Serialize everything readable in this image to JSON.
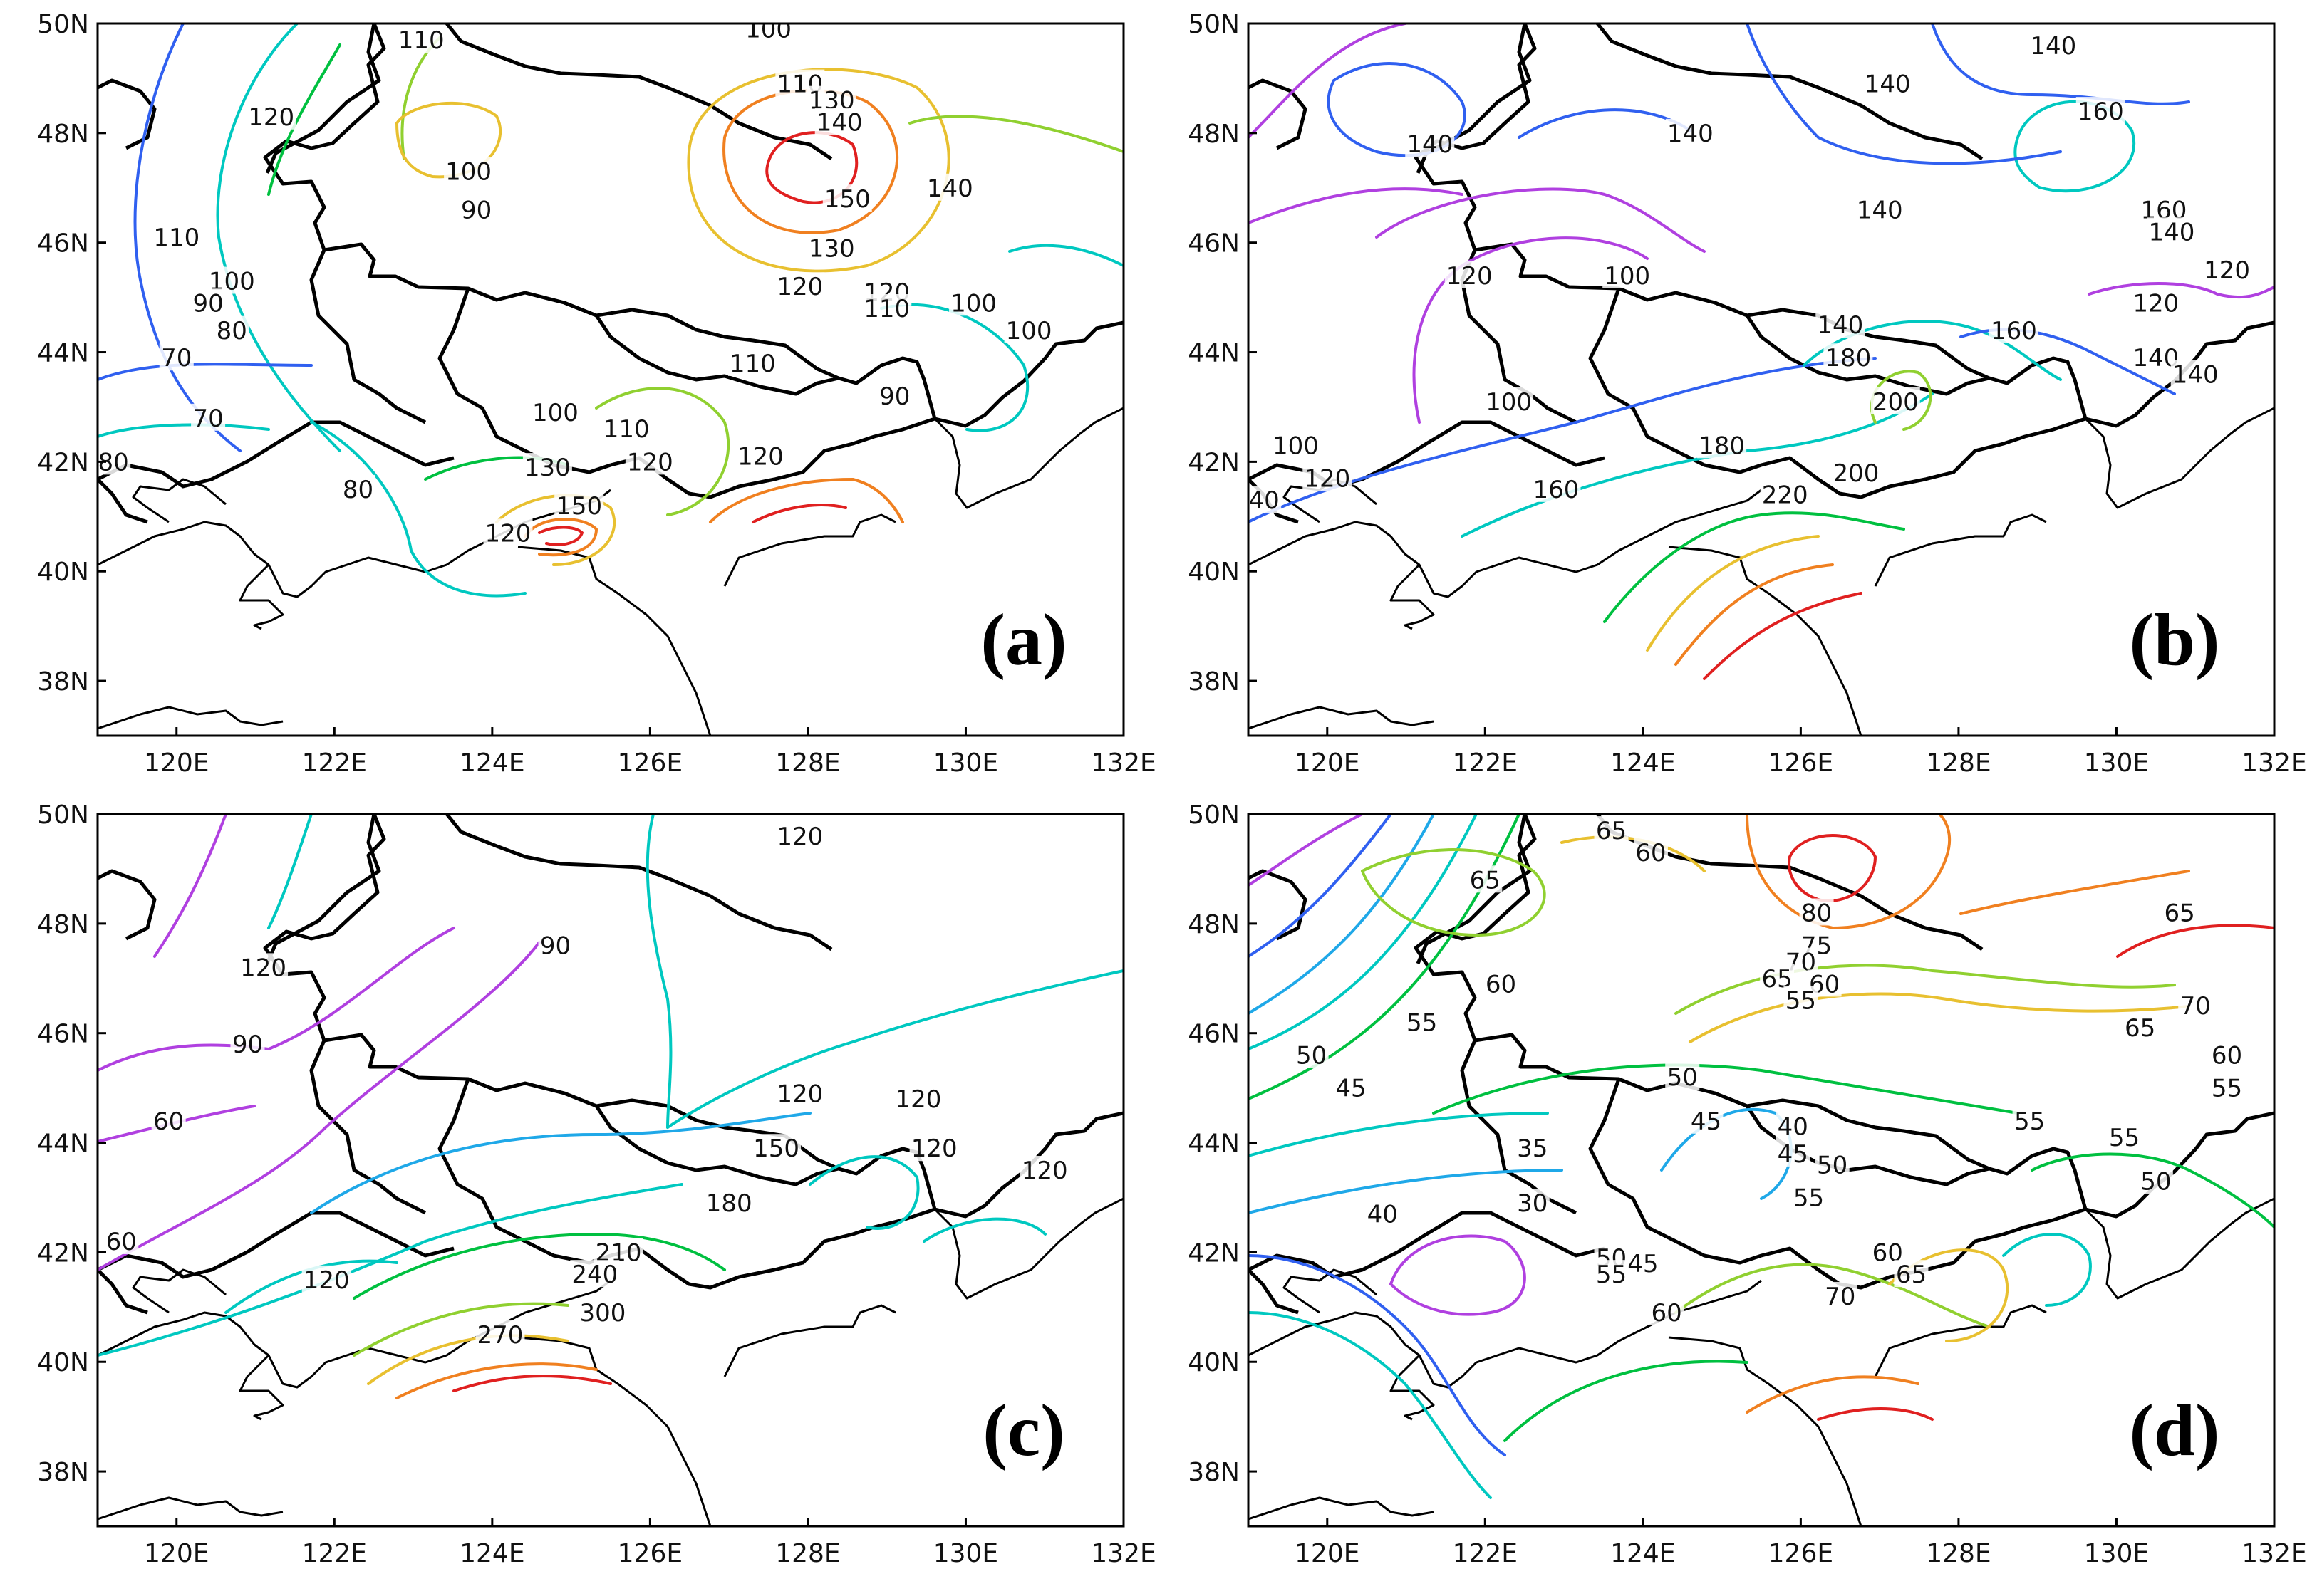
{
  "figure": {
    "lon_ticks": [
      "120E",
      "122E",
      "124E",
      "126E",
      "128E",
      "130E",
      "132E"
    ],
    "lat_ticks": [
      "50N",
      "48N",
      "46N",
      "44N",
      "42N",
      "40N",
      "38N"
    ],
    "extent": {
      "lon": [
        119,
        132
      ],
      "lat": [
        37,
        50
      ]
    }
  },
  "colors": {
    "c30": "#b040e0",
    "c35": "#b040e0",
    "c40": "#3060f0",
    "c45": "#1f9fe8",
    "c50": "#00c8c0",
    "c55": "#00c060",
    "c60": "#70d040",
    "c65": "#e0c030",
    "c70": "#f07820",
    "c75": "#f05020",
    "c80": "#e02020",
    "purple": "#b040e0",
    "blue": "#3060f0",
    "lightblue": "#1fa8e8",
    "cyan": "#00c8c0",
    "green": "#00c040",
    "lime": "#90d030",
    "yellow": "#e8c030",
    "orange": "#f08020",
    "red": "#e02020"
  },
  "panels": [
    {
      "id": "a",
      "letter": "(a)",
      "labels": [
        {
          "t": "110",
          "lon": 123.1,
          "lat": 49.7
        },
        {
          "t": "100",
          "lon": 127.5,
          "lat": 49.9
        },
        {
          "t": "120",
          "lon": 121.2,
          "lat": 48.3
        },
        {
          "t": "100",
          "lon": 123.7,
          "lat": 47.3
        },
        {
          "t": "90",
          "lon": 123.8,
          "lat": 46.6
        },
        {
          "t": "110",
          "lon": 127.9,
          "lat": 48.9
        },
        {
          "t": "130",
          "lon": 128.3,
          "lat": 48.6
        },
        {
          "t": "140",
          "lon": 128.4,
          "lat": 48.2
        },
        {
          "t": "150",
          "lon": 128.5,
          "lat": 46.8
        },
        {
          "t": "140",
          "lon": 129.8,
          "lat": 47.0
        },
        {
          "t": "130",
          "lon": 128.3,
          "lat": 45.9
        },
        {
          "t": "120",
          "lon": 127.9,
          "lat": 45.2
        },
        {
          "t": "120",
          "lon": 129.0,
          "lat": 45.1
        },
        {
          "t": "110",
          "lon": 129.0,
          "lat": 44.8
        },
        {
          "t": "100",
          "lon": 130.1,
          "lat": 44.9
        },
        {
          "t": "100",
          "lon": 130.8,
          "lat": 44.4
        },
        {
          "t": "110",
          "lon": 120.0,
          "lat": 46.1
        },
        {
          "t": "100",
          "lon": 120.7,
          "lat": 45.3
        },
        {
          "t": "90",
          "lon": 120.4,
          "lat": 44.9
        },
        {
          "t": "80",
          "lon": 120.7,
          "lat": 44.4
        },
        {
          "t": "70",
          "lon": 120.0,
          "lat": 43.9
        },
        {
          "t": "70",
          "lon": 120.4,
          "lat": 42.8
        },
        {
          "t": "80",
          "lon": 119.2,
          "lat": 42.0
        },
        {
          "t": "80",
          "lon": 122.3,
          "lat": 41.5
        },
        {
          "t": "110",
          "lon": 127.3,
          "lat": 43.8
        },
        {
          "t": "90",
          "lon": 129.1,
          "lat": 43.2
        },
        {
          "t": "100",
          "lon": 124.8,
          "lat": 42.9
        },
        {
          "t": "110",
          "lon": 125.7,
          "lat": 42.6
        },
        {
          "t": "130",
          "lon": 124.7,
          "lat": 41.9
        },
        {
          "t": "120",
          "lon": 126.0,
          "lat": 42.0
        },
        {
          "t": "120",
          "lon": 127.4,
          "lat": 42.1
        },
        {
          "t": "150",
          "lon": 125.1,
          "lat": 41.2
        },
        {
          "t": "120",
          "lon": 124.2,
          "lat": 40.7
        }
      ]
    },
    {
      "id": "b",
      "letter": "(b)",
      "labels": [
        {
          "t": "140",
          "lon": 129.2,
          "lat": 49.6
        },
        {
          "t": "140",
          "lon": 127.1,
          "lat": 48.9
        },
        {
          "t": "160",
          "lon": 129.8,
          "lat": 48.4
        },
        {
          "t": "140",
          "lon": 121.3,
          "lat": 47.8
        },
        {
          "t": "140",
          "lon": 124.6,
          "lat": 48.0
        },
        {
          "t": "140",
          "lon": 127.0,
          "lat": 46.6
        },
        {
          "t": "160",
          "lon": 130.6,
          "lat": 46.6
        },
        {
          "t": "140",
          "lon": 130.7,
          "lat": 46.2
        },
        {
          "t": "120",
          "lon": 121.8,
          "lat": 45.4
        },
        {
          "t": "100",
          "lon": 123.8,
          "lat": 45.4
        },
        {
          "t": "120",
          "lon": 130.5,
          "lat": 44.9
        },
        {
          "t": "120",
          "lon": 131.4,
          "lat": 45.5
        },
        {
          "t": "140",
          "lon": 126.5,
          "lat": 44.5
        },
        {
          "t": "160",
          "lon": 128.7,
          "lat": 44.4
        },
        {
          "t": "180",
          "lon": 126.6,
          "lat": 43.9
        },
        {
          "t": "140",
          "lon": 130.5,
          "lat": 43.9
        },
        {
          "t": "140",
          "lon": 131.0,
          "lat": 43.6
        },
        {
          "t": "200",
          "lon": 127.2,
          "lat": 43.1
        },
        {
          "t": "100",
          "lon": 122.3,
          "lat": 43.1
        },
        {
          "t": "100",
          "lon": 119.6,
          "lat": 42.3
        },
        {
          "t": "120",
          "lon": 120.0,
          "lat": 41.7
        },
        {
          "t": "180",
          "lon": 125.0,
          "lat": 42.3
        },
        {
          "t": "200",
          "lon": 126.7,
          "lat": 41.8
        },
        {
          "t": "160",
          "lon": 122.9,
          "lat": 41.5
        },
        {
          "t": "220",
          "lon": 125.8,
          "lat": 41.4
        },
        {
          "t": "40",
          "lon": 119.2,
          "lat": 41.3
        }
      ]
    },
    {
      "id": "c",
      "letter": "(c)",
      "labels": [
        {
          "t": "120",
          "lon": 127.9,
          "lat": 49.6
        },
        {
          "t": "90",
          "lon": 124.8,
          "lat": 47.6
        },
        {
          "t": "120",
          "lon": 121.1,
          "lat": 47.2
        },
        {
          "t": "90",
          "lon": 120.9,
          "lat": 45.8
        },
        {
          "t": "60",
          "lon": 119.9,
          "lat": 44.4
        },
        {
          "t": "120",
          "lon": 127.9,
          "lat": 44.9
        },
        {
          "t": "120",
          "lon": 129.4,
          "lat": 44.8
        },
        {
          "t": "150",
          "lon": 127.6,
          "lat": 43.9
        },
        {
          "t": "120",
          "lon": 129.6,
          "lat": 43.9
        },
        {
          "t": "120",
          "lon": 131.0,
          "lat": 43.5
        },
        {
          "t": "180",
          "lon": 127.0,
          "lat": 42.9
        },
        {
          "t": "60",
          "lon": 119.3,
          "lat": 42.2
        },
        {
          "t": "120",
          "lon": 121.9,
          "lat": 41.5
        },
        {
          "t": "210",
          "lon": 125.6,
          "lat": 42.0
        },
        {
          "t": "240",
          "lon": 125.3,
          "lat": 41.6
        },
        {
          "t": "300",
          "lon": 125.4,
          "lat": 40.9
        },
        {
          "t": "270",
          "lon": 124.1,
          "lat": 40.5
        }
      ]
    },
    {
      "id": "d",
      "letter": "(d)",
      "labels": [
        {
          "t": "65",
          "lon": 123.6,
          "lat": 49.7
        },
        {
          "t": "60",
          "lon": 124.1,
          "lat": 49.3
        },
        {
          "t": "65",
          "lon": 122.0,
          "lat": 48.8
        },
        {
          "t": "80",
          "lon": 126.2,
          "lat": 48.2
        },
        {
          "t": "75",
          "lon": 126.2,
          "lat": 47.6
        },
        {
          "t": "70",
          "lon": 126.0,
          "lat": 47.3
        },
        {
          "t": "65",
          "lon": 125.7,
          "lat": 47.0
        },
        {
          "t": "60",
          "lon": 126.3,
          "lat": 46.9
        },
        {
          "t": "55",
          "lon": 126.0,
          "lat": 46.6
        },
        {
          "t": "60",
          "lon": 122.2,
          "lat": 46.9
        },
        {
          "t": "65",
          "lon": 130.8,
          "lat": 48.2
        },
        {
          "t": "70",
          "lon": 131.0,
          "lat": 46.5
        },
        {
          "t": "65",
          "lon": 130.3,
          "lat": 46.1
        },
        {
          "t": "60",
          "lon": 131.4,
          "lat": 45.6
        },
        {
          "t": "55",
          "lon": 121.2,
          "lat": 46.2
        },
        {
          "t": "50",
          "lon": 119.8,
          "lat": 45.6
        },
        {
          "t": "50",
          "lon": 124.5,
          "lat": 45.2
        },
        {
          "t": "45",
          "lon": 120.3,
          "lat": 45.0
        },
        {
          "t": "45",
          "lon": 124.8,
          "lat": 44.4
        },
        {
          "t": "40",
          "lon": 125.9,
          "lat": 44.3
        },
        {
          "t": "45",
          "lon": 125.9,
          "lat": 43.8
        },
        {
          "t": "50",
          "lon": 126.4,
          "lat": 43.6
        },
        {
          "t": "55",
          "lon": 128.9,
          "lat": 44.4
        },
        {
          "t": "55",
          "lon": 130.1,
          "lat": 44.1
        },
        {
          "t": "55",
          "lon": 131.4,
          "lat": 45.0
        },
        {
          "t": "35",
          "lon": 122.6,
          "lat": 43.9
        },
        {
          "t": "30",
          "lon": 122.6,
          "lat": 42.9
        },
        {
          "t": "50",
          "lon": 130.5,
          "lat": 43.3
        },
        {
          "t": "55",
          "lon": 126.1,
          "lat": 43.0
        },
        {
          "t": "40",
          "lon": 120.7,
          "lat": 42.7
        },
        {
          "t": "50",
          "lon": 123.6,
          "lat": 41.9
        },
        {
          "t": "45",
          "lon": 124.0,
          "lat": 41.8
        },
        {
          "t": "55",
          "lon": 123.6,
          "lat": 41.6
        },
        {
          "t": "60",
          "lon": 127.1,
          "lat": 42.0
        },
        {
          "t": "65",
          "lon": 127.4,
          "lat": 41.6
        },
        {
          "t": "70",
          "lon": 126.5,
          "lat": 41.2
        },
        {
          "t": "60",
          "lon": 124.3,
          "lat": 40.9
        }
      ]
    }
  ]
}
